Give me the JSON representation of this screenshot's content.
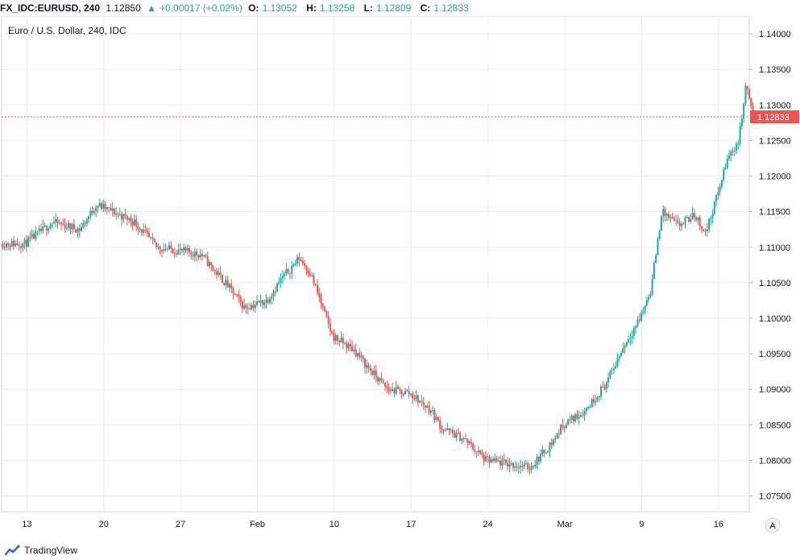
{
  "header": {
    "symbol": "FX_IDC:EURUSD, 240",
    "last": "1.12850",
    "change_arrow": "▲",
    "change": "+0.00017 (+0.02%)",
    "o_label": "O:",
    "o_value": "1.13052",
    "h_label": "H:",
    "h_value": "1.13258",
    "l_label": "L:",
    "l_value": "1.12809",
    "c_label": "C:",
    "c_value": "1.12833"
  },
  "chart_data": {
    "type": "candlestick",
    "title": "Euro / U.S. Dollar, 240, IDC",
    "ylim": [
      1.0728,
      1.1425
    ],
    "y_ticks": [
      1.075,
      1.08,
      1.085,
      1.09,
      1.095,
      1.1,
      1.105,
      1.11,
      1.115,
      1.12,
      1.125,
      1.13,
      1.135,
      1.14
    ],
    "y_tick_labels": [
      "1.07500",
      "1.08000",
      "1.08500",
      "1.09000",
      "1.09500",
      "1.10000",
      "1.10500",
      "1.11000",
      "1.11500",
      "1.12000",
      "1.12500",
      "1.13000",
      "1.13500",
      "1.14000"
    ],
    "x_labels": [
      "13",
      "20",
      "27",
      "Feb",
      "10",
      "17",
      "24",
      "Mar",
      "9",
      "16"
    ],
    "x_label_days": [
      0,
      7,
      14,
      21,
      28,
      35,
      42,
      49,
      56,
      63
    ],
    "x_day_range": [
      -2.3,
      65.8
    ],
    "last_price": 1.12833,
    "last_price_label": "1.12833",
    "grid": true,
    "up_color": "#26a69a",
    "down_color": "#ef5350",
    "path": [
      [
        0,
        1.1105
      ],
      [
        2.5,
        1.1135
      ],
      [
        5,
        1.1125
      ],
      [
        6.5,
        1.116
      ],
      [
        8,
        1.115
      ],
      [
        10,
        1.1135
      ],
      [
        12,
        1.11
      ],
      [
        16,
        1.109
      ],
      [
        18.5,
        1.1045
      ],
      [
        20,
        1.1015
      ],
      [
        22,
        1.1025
      ],
      [
        23.5,
        1.1058
      ],
      [
        25,
        1.1085
      ],
      [
        26,
        1.1063
      ],
      [
        28,
        1.0975
      ],
      [
        30,
        1.0955
      ],
      [
        31,
        1.0935
      ],
      [
        33,
        1.09
      ],
      [
        35,
        1.0895
      ],
      [
        37,
        1.087
      ],
      [
        38,
        1.0845
      ],
      [
        40,
        1.083
      ],
      [
        42,
        1.08
      ],
      [
        44,
        1.0795
      ],
      [
        46,
        1.079
      ],
      [
        48,
        1.0825
      ],
      [
        49,
        1.085
      ],
      [
        51,
        1.087
      ],
      [
        53,
        1.091
      ],
      [
        54.5,
        1.096
      ],
      [
        56,
        1.1
      ],
      [
        57,
        1.104
      ],
      [
        58,
        1.115
      ],
      [
        59.5,
        1.113
      ],
      [
        61,
        1.1145
      ],
      [
        62,
        1.112
      ],
      [
        63,
        1.117
      ],
      [
        64,
        1.1225
      ],
      [
        65,
        1.125
      ],
      [
        65.7,
        1.133
      ],
      [
        66.3,
        1.1283
      ]
    ]
  },
  "footer": {
    "logo_text": "TradingView",
    "scale_button": "A"
  },
  "colors": {
    "grid": "#e9ecf1",
    "text": "#131722",
    "last_price_line": "#ef5350"
  }
}
